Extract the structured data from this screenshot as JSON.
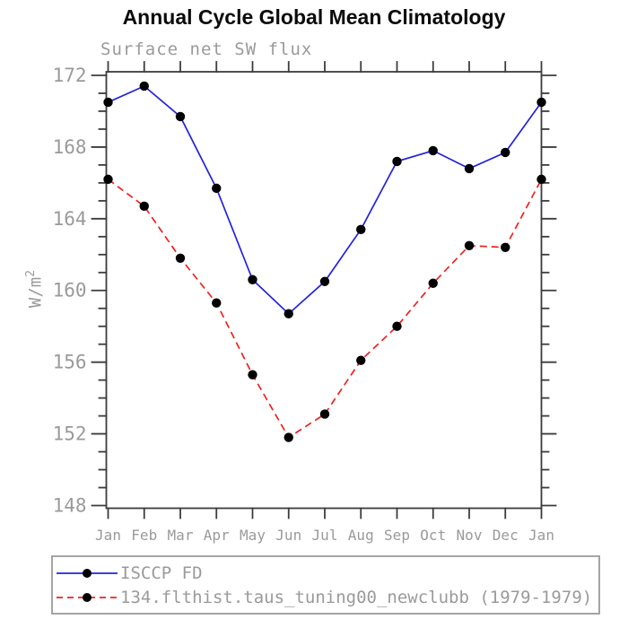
{
  "title": "Annual Cycle Global Mean Climatology",
  "subtitle": "Surface net SW flux",
  "y_axis": {
    "label_base": "W/m",
    "label_exponent": "2"
  },
  "chart_data": {
    "type": "line",
    "title": "Annual Cycle Global Mean Climatology",
    "subtitle": "Surface net SW flux",
    "ylabel": "W/m2",
    "x_categories": [
      "Jan",
      "Feb",
      "Mar",
      "Apr",
      "May",
      "Jun",
      "Jul",
      "Aug",
      "Sep",
      "Oct",
      "Nov",
      "Dec",
      "Jan"
    ],
    "series": [
      {
        "name": "ISCCP FD",
        "color": "#2323dc",
        "line_style": "solid",
        "marker": "filled-circle",
        "marker_color": "#000000",
        "values": [
          170.5,
          171.4,
          169.7,
          165.7,
          160.6,
          158.7,
          160.5,
          163.4,
          167.2,
          167.8,
          166.8,
          167.7,
          170.5
        ]
      },
      {
        "name": "134.flthist.taus_tuning00_newclubb (1979-1979)",
        "color": "#f02020",
        "line_style": "dashed",
        "marker": "filled-circle",
        "marker_color": "#000000",
        "values": [
          166.2,
          164.7,
          161.8,
          159.3,
          155.3,
          151.8,
          153.1,
          156.1,
          158.0,
          160.4,
          162.5,
          162.4,
          166.2
        ]
      }
    ],
    "ylim": [
      147.85,
      172.2
    ],
    "yticks_major": [
      148,
      152,
      156,
      160,
      164,
      168,
      172
    ],
    "ytick_minor_step": 1,
    "grid": false,
    "legend_position": "bottom",
    "axis_color": "#3c3c3c",
    "text_color": "#9a9a9a"
  }
}
